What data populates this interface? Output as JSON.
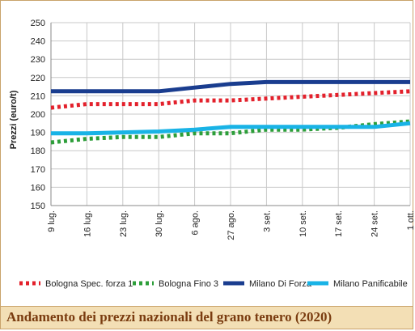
{
  "chart_data": {
    "type": "line",
    "title": "Andamento dei prezzi nazionali del grano tenero (2020)",
    "xlabel": "",
    "ylabel": "Prezzi (euro/t)",
    "ylim": [
      150,
      250
    ],
    "yticks": [
      150,
      160,
      170,
      180,
      190,
      200,
      210,
      220,
      230,
      240,
      250
    ],
    "grid": true,
    "legend_position": "bottom",
    "categories": [
      "9 lug.",
      "16 lug.",
      "23 lug.",
      "30 lug.",
      "6 ago.",
      "27 ago.",
      "3 set.",
      "10 set.",
      "17 set.",
      "24 set.",
      "1 ott."
    ],
    "series": [
      {
        "name": "Bologna Spec. forza 1",
        "color": "#e3202b",
        "style": "dotted",
        "values": [
          203.5,
          205.5,
          205.5,
          205.5,
          207.5,
          207.5,
          208.5,
          209.5,
          210.5,
          211.5,
          212.5
        ]
      },
      {
        "name": "Bologna Fino 3",
        "color": "#2d9e3a",
        "style": "dotted",
        "values": [
          184.5,
          186.5,
          187.5,
          187.5,
          189.5,
          189.5,
          191.5,
          191.5,
          192.5,
          194.5,
          196.0
        ]
      },
      {
        "name": "Milano Di Forza",
        "color": "#1a3d8f",
        "style": "solid",
        "values": [
          212.5,
          212.5,
          212.5,
          212.5,
          214.5,
          216.5,
          217.5,
          217.5,
          217.5,
          217.5,
          217.5
        ]
      },
      {
        "name": "Milano Panificabile",
        "color": "#19b3e6",
        "style": "solid",
        "values": [
          189.5,
          189.5,
          190.0,
          190.5,
          191.5,
          193.0,
          193.0,
          193.0,
          193.0,
          193.0,
          195.0
        ]
      }
    ]
  }
}
